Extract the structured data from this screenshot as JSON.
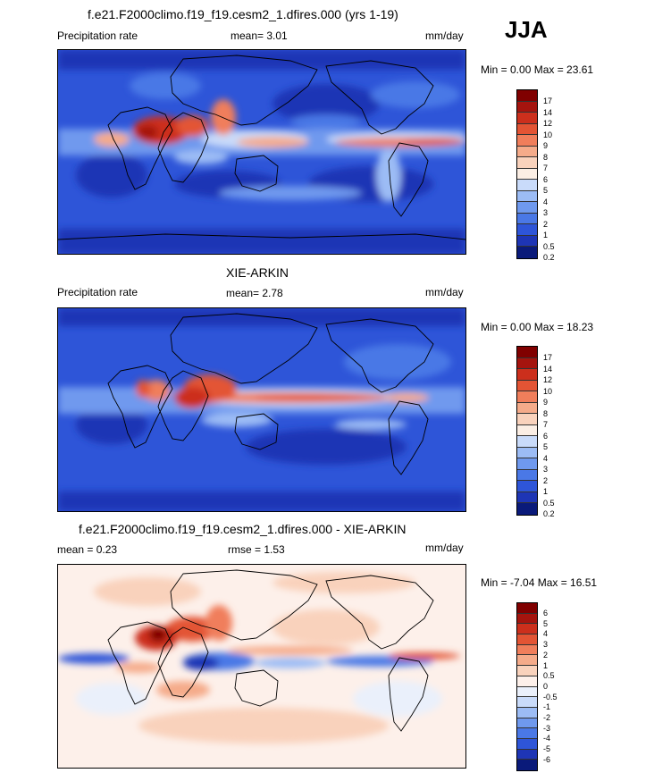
{
  "season": "JJA",
  "colors": {
    "precip": [
      "#0a1a7a",
      "#1e35b5",
      "#2e55d8",
      "#4a78e6",
      "#6f99ee",
      "#9cbcf5",
      "#c9dbfa",
      "#fbeee4",
      "#f9d2bc",
      "#f5ab8a",
      "#f07e5b",
      "#e35434",
      "#cc2f1c",
      "#a5140e",
      "#800000"
    ],
    "diff": [
      "#0a1a7a",
      "#1e35b5",
      "#2e55d8",
      "#4a78e6",
      "#6f99ee",
      "#9cbcf5",
      "#c9dbfa",
      "#eaf0fb",
      "#fdf0ea",
      "#f9d2bc",
      "#f5ab8a",
      "#f07e5b",
      "#e35434",
      "#cc2f1c",
      "#a5140e",
      "#800000"
    ]
  },
  "panels": [
    {
      "title": "f.e21.F2000climo.f19_f19.cesm2_1.dfires.000 (yrs 1-19)",
      "left": "Precipitation rate",
      "center": "mean=   3.01",
      "units": "mm/day",
      "minmax": "Min =   0.00 Max =  23.61",
      "levels": [
        "17",
        "14",
        "12",
        "10",
        "9",
        "8",
        "7",
        "6",
        "5",
        "4",
        "3",
        "2",
        "1",
        "0.5",
        "0.2"
      ]
    },
    {
      "title": "XIE-ARKIN",
      "left": "Precipitation rate",
      "center": "mean=   2.78",
      "units": "mm/day",
      "minmax": "Min =   0.00 Max =  18.23",
      "levels": [
        "17",
        "14",
        "12",
        "10",
        "9",
        "8",
        "7",
        "6",
        "5",
        "4",
        "3",
        "2",
        "1",
        "0.5",
        "0.2"
      ]
    },
    {
      "title": "f.e21.F2000climo.f19_f19.cesm2_1.dfires.000 - XIE-ARKIN",
      "left": "mean =   0.23",
      "center": "rmse =   1.53",
      "units": "mm/day",
      "minmax": "Min =  -7.04 Max =  16.51",
      "levels": [
        "6",
        "5",
        "4",
        "3",
        "2",
        "1",
        "0.5",
        "0",
        "-0.5",
        "-1",
        "-2",
        "-3",
        "-4",
        "-5",
        "-6"
      ]
    }
  ],
  "chart_data": [
    {
      "type": "heatmap",
      "title": "f.e21.F2000climo.f19_f19.cesm2_1.dfires.000 (yrs 1-19)",
      "subtitle": "Precipitation rate",
      "units": "mm/day",
      "mean": 3.01,
      "min": 0.0,
      "max": 23.61,
      "colorbar_levels": [
        0.2,
        0.5,
        1,
        2,
        3,
        4,
        5,
        6,
        7,
        8,
        9,
        10,
        12,
        14,
        17
      ]
    },
    {
      "type": "heatmap",
      "title": "XIE-ARKIN",
      "subtitle": "Precipitation rate",
      "units": "mm/day",
      "mean": 2.78,
      "min": 0.0,
      "max": 18.23,
      "colorbar_levels": [
        0.2,
        0.5,
        1,
        2,
        3,
        4,
        5,
        6,
        7,
        8,
        9,
        10,
        12,
        14,
        17
      ]
    },
    {
      "type": "heatmap",
      "title": "f.e21.F2000climo.f19_f19.cesm2_1.dfires.000 - XIE-ARKIN",
      "units": "mm/day",
      "mean": 0.23,
      "rmse": 1.53,
      "min": -7.04,
      "max": 16.51,
      "colorbar_levels": [
        -6,
        -5,
        -4,
        -3,
        -2,
        -1,
        -0.5,
        0,
        0.5,
        1,
        2,
        3,
        4,
        5,
        6
      ]
    }
  ]
}
